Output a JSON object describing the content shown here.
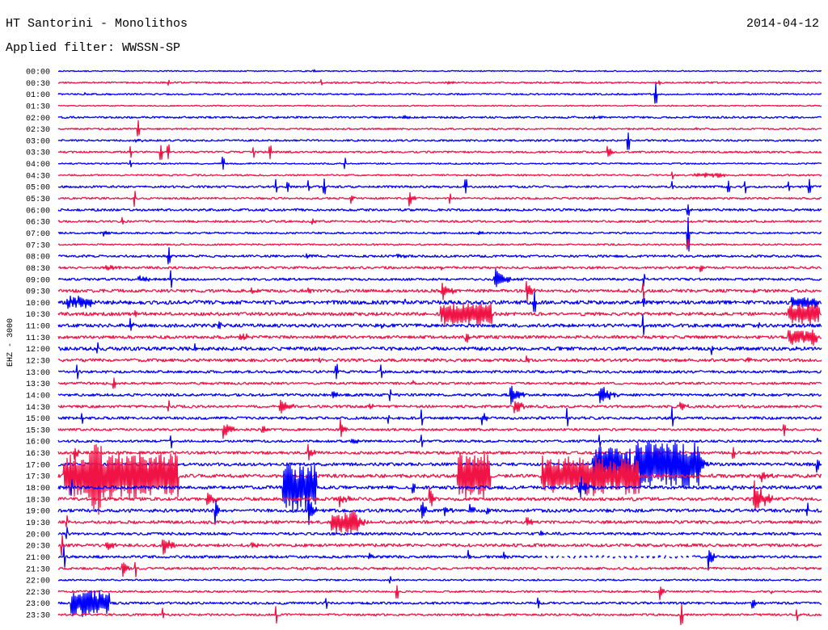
{
  "chart_data": {
    "type": "line",
    "title": "HT Santorini - Monolithos",
    "subtitle": "Applied filter: WWSSN-SP",
    "date": "2014-04-12",
    "xlabel": "",
    "ylabel": "EHZ - 3000",
    "x_range_minutes": [
      0,
      30
    ],
    "colors": [
      "#0000ff",
      "#f01446"
    ],
    "series": [
      {
        "name": "00:00",
        "noise": 0.05,
        "bursts": [
          [
            10.0,
            0.3,
            0.12
          ]
        ]
      },
      {
        "name": "00:30",
        "noise": 0.07,
        "bursts": [
          [
            4.3,
            0.05,
            0.2
          ],
          [
            10.3,
            0.05,
            0.25
          ],
          [
            15.3,
            0.3,
            0.15
          ],
          [
            23.6,
            0.05,
            0.2
          ]
        ]
      },
      {
        "name": "01:00",
        "noise": 0.07,
        "bursts": [
          [
            1.0,
            0.3,
            0.15
          ],
          [
            23.45,
            0.05,
            0.9
          ]
        ]
      },
      {
        "name": "01:30",
        "noise": 0.05,
        "bursts": []
      },
      {
        "name": "02:00",
        "noise": 0.08,
        "bursts": [
          [
            13.5,
            0.5,
            0.15
          ],
          [
            21.0,
            0.5,
            0.15
          ]
        ]
      },
      {
        "name": "02:30",
        "noise": 0.07,
        "bursts": [
          [
            3.11,
            0.05,
            0.7
          ],
          [
            25.0,
            0.5,
            0.12
          ]
        ]
      },
      {
        "name": "03:00",
        "noise": 0.08,
        "bursts": [
          [
            3.0,
            0.5,
            0.15
          ],
          [
            22.37,
            0.05,
            0.8
          ]
        ]
      },
      {
        "name": "03:30",
        "noise": 0.08,
        "bursts": [
          [
            2.8,
            0.05,
            0.5
          ],
          [
            4.0,
            0.05,
            0.7
          ],
          [
            4.29,
            0.05,
            0.6
          ],
          [
            7.63,
            0.05,
            0.5
          ],
          [
            8.29,
            0.05,
            0.6
          ],
          [
            21.55,
            0.25,
            0.8
          ]
        ]
      },
      {
        "name": "04:00",
        "noise": 0.06,
        "bursts": [
          [
            2.8,
            0.05,
            0.3
          ],
          [
            6.45,
            0.05,
            0.6
          ],
          [
            11.22,
            0.05,
            0.5
          ]
        ]
      },
      {
        "name": "04:30",
        "noise": 0.07,
        "bursts": [
          [
            24.1,
            0.05,
            0.3
          ],
          [
            25.0,
            1.2,
            0.15
          ]
        ]
      },
      {
        "name": "05:00",
        "noise": 0.09,
        "bursts": [
          [
            8.52,
            0.05,
            0.7
          ],
          [
            8.99,
            0.05,
            0.5
          ],
          [
            9.8,
            0.05,
            0.5
          ],
          [
            10.42,
            0.05,
            0.6
          ],
          [
            15.98,
            0.05,
            0.6
          ],
          [
            24.09,
            0.1,
            0.9
          ],
          [
            26.31,
            0.05,
            0.5
          ],
          [
            26.95,
            0.05,
            0.5
          ],
          [
            28.69,
            0.05,
            0.4
          ],
          [
            29.49,
            0.05,
            0.6
          ]
        ]
      },
      {
        "name": "05:30",
        "noise": 0.08,
        "bursts": [
          [
            2.96,
            0.05,
            0.7
          ],
          [
            11.47,
            0.2,
            0.6
          ],
          [
            13.76,
            0.3,
            0.7
          ],
          [
            15.35,
            0.05,
            0.5
          ]
        ]
      },
      {
        "name": "06:00",
        "noise": 0.1,
        "bursts": [
          [
            24.72,
            0.05,
            0.5
          ]
        ]
      },
      {
        "name": "06:30",
        "noise": 0.09,
        "bursts": [
          [
            2.5,
            0.05,
            0.3
          ],
          [
            9.95,
            0.3,
            0.3
          ]
        ]
      },
      {
        "name": "07:00",
        "noise": 0.08,
        "bursts": [
          [
            1.75,
            0.3,
            0.55
          ],
          [
            16.5,
            0.3,
            0.2
          ],
          [
            24.72,
            0.05,
            1.6
          ]
        ]
      },
      {
        "name": "07:30",
        "noise": 0.07,
        "bursts": [
          [
            24.7,
            0.05,
            0.5
          ]
        ]
      },
      {
        "name": "08:00",
        "noise": 0.1,
        "bursts": [
          [
            4.32,
            0.05,
            0.8
          ],
          [
            9.72,
            0.3,
            0.3
          ],
          [
            13.28,
            0.4,
            0.3
          ]
        ]
      },
      {
        "name": "08:30",
        "noise": 0.1,
        "bursts": [
          [
            1.84,
            0.8,
            0.3
          ],
          [
            15.0,
            0.2,
            0.25
          ],
          [
            25.2,
            0.2,
            0.6
          ]
        ]
      },
      {
        "name": "09:00",
        "noise": 0.1,
        "bursts": [
          [
            3.1,
            0.8,
            0.3
          ],
          [
            4.39,
            0.05,
            0.8
          ],
          [
            17.1,
            0.7,
            1.0
          ],
          [
            23.0,
            0.05,
            0.6
          ]
        ]
      },
      {
        "name": "09:30",
        "noise": 0.13,
        "bursts": [
          [
            7.56,
            0.3,
            0.4
          ],
          [
            9.79,
            0.4,
            0.35
          ],
          [
            15.03,
            0.6,
            0.9
          ],
          [
            18.37,
            0.4,
            1.1
          ],
          [
            22.97,
            0.05,
            0.8
          ],
          [
            27.0,
            0.5,
            0.3
          ]
        ]
      },
      {
        "name": "10:00",
        "noise": 0.16,
        "bursts": [
          [
            0.3,
            1.0,
            0.45
          ],
          [
            13.6,
            0.1,
            0.5
          ],
          [
            18.68,
            0.05,
            1.0
          ],
          [
            22.97,
            0.1,
            1.1
          ],
          [
            28.8,
            1.0,
            0.4
          ]
        ]
      },
      {
        "name": "10:30",
        "noise": 0.14,
        "bursts": [
          [
            3.0,
            0.1,
            0.5
          ],
          [
            15.03,
            2.0,
            0.9
          ],
          [
            28.69,
            1.2,
            0.8
          ]
        ]
      },
      {
        "name": "11:00",
        "noise": 0.14,
        "bursts": [
          [
            2.8,
            0.2,
            0.8
          ],
          [
            6.29,
            0.1,
            0.8
          ],
          [
            12.5,
            0.5,
            0.3
          ],
          [
            22.97,
            0.05,
            1.0
          ],
          [
            27.5,
            0.1,
            0.6
          ]
        ]
      },
      {
        "name": "11:30",
        "noise": 0.13,
        "bursts": [
          [
            7.09,
            0.6,
            0.5
          ],
          [
            16.0,
            0.3,
            0.6
          ],
          [
            28.69,
            1.1,
            0.6
          ]
        ]
      },
      {
        "name": "12:00",
        "noise": 0.15,
        "bursts": [
          [
            1.5,
            0.05,
            0.6
          ],
          [
            5.34,
            0.1,
            0.8
          ],
          [
            25.67,
            0.1,
            0.7
          ],
          [
            29.01,
            0.1,
            0.5
          ]
        ]
      },
      {
        "name": "12:30",
        "noise": 0.13,
        "bursts": [
          [
            10.26,
            0.1,
            0.7
          ],
          [
            18.37,
            0.2,
            0.5
          ],
          [
            27.0,
            0.4,
            0.3
          ]
        ]
      },
      {
        "name": "13:00",
        "noise": 0.11,
        "bursts": [
          [
            0.7,
            0.05,
            0.6
          ],
          [
            10.9,
            0.05,
            0.6
          ],
          [
            12.65,
            0.05,
            0.5
          ]
        ]
      },
      {
        "name": "13:30",
        "noise": 0.1,
        "bursts": [
          [
            2.16,
            0.05,
            0.5
          ],
          [
            13.92,
            0.2,
            0.3
          ]
        ]
      },
      {
        "name": "14:00",
        "noise": 0.11,
        "bursts": [
          [
            10.74,
            0.3,
            0.5
          ],
          [
            13.0,
            0.05,
            0.6
          ],
          [
            17.73,
            0.6,
            0.9
          ],
          [
            21.23,
            0.8,
            0.9
          ]
        ]
      },
      {
        "name": "14:30",
        "noise": 0.11,
        "bursts": [
          [
            4.3,
            0.05,
            0.5
          ],
          [
            8.67,
            0.6,
            0.9
          ],
          [
            12.2,
            0.2,
            0.6
          ],
          [
            17.89,
            0.5,
            0.9
          ],
          [
            24.4,
            0.4,
            0.5
          ]
        ]
      },
      {
        "name": "15:00",
        "noise": 0.11,
        "bursts": [
          [
            0.89,
            0.05,
            0.6
          ],
          [
            12.96,
            0.1,
            0.6
          ],
          [
            14.24,
            0.05,
            0.7
          ],
          [
            16.62,
            0.3,
            0.9
          ],
          [
            19.96,
            0.05,
            0.8
          ],
          [
            24.09,
            0.05,
            0.9
          ]
        ]
      },
      {
        "name": "15:30",
        "noise": 0.1,
        "bursts": [
          [
            6.45,
            0.5,
            1.0
          ],
          [
            8.0,
            0.2,
            0.5
          ],
          [
            11.06,
            0.3,
            0.9
          ],
          [
            28.5,
            0.05,
            0.5
          ]
        ]
      },
      {
        "name": "16:00",
        "noise": 0.1,
        "bursts": [
          [
            4.39,
            0.05,
            0.5
          ],
          [
            11.5,
            0.3,
            0.5
          ],
          [
            14.24,
            0.05,
            0.6
          ],
          [
            21.23,
            0.05,
            0.6
          ],
          [
            29.81,
            0.1,
            0.7
          ]
        ]
      },
      {
        "name": "16:30",
        "noise": 0.12,
        "bursts": [
          [
            0.6,
            0.3,
            0.7
          ],
          [
            9.79,
            0.3,
            0.8
          ],
          [
            23.45,
            0.3,
            0.7
          ],
          [
            26.5,
            0.05,
            0.5
          ]
        ]
      },
      {
        "name": "17:00",
        "noise": 0.13,
        "bursts": [
          [
            21.0,
            1.5,
            1.4
          ],
          [
            22.6,
            2.6,
            2.0
          ],
          [
            25.2,
            0.5,
            0.8
          ],
          [
            29.8,
            0.15,
            1.2
          ]
        ]
      },
      {
        "name": "17:30",
        "noise": 0.15,
        "bursts": [
          [
            0.2,
            1.5,
            1.8
          ],
          [
            1.3,
            3.4,
            2.0
          ],
          [
            15.67,
            1.3,
            1.9
          ],
          [
            19.0,
            3.8,
            1.6
          ],
          [
            27.5,
            0.6,
            0.6
          ]
        ]
      },
      {
        "name": "18:00",
        "noise": 0.14,
        "bursts": [
          [
            0.5,
            0.05,
            0.8
          ],
          [
            8.83,
            1.3,
            2.0
          ],
          [
            13.9,
            0.2,
            0.6
          ],
          [
            20.43,
            0.6,
            1.2
          ],
          [
            26.5,
            0.1,
            0.5
          ]
        ]
      },
      {
        "name": "18:30",
        "noise": 0.14,
        "bursts": [
          [
            5.82,
            0.4,
            1.0
          ],
          [
            11.0,
            0.5,
            0.8
          ],
          [
            14.55,
            0.3,
            1.2
          ],
          [
            27.3,
            0.8,
            1.7
          ]
        ]
      },
      {
        "name": "19:00",
        "noise": 0.14,
        "bursts": [
          [
            6.13,
            0.3,
            1.2
          ],
          [
            9.79,
            0.4,
            1.5
          ],
          [
            14.24,
            0.3,
            1.0
          ],
          [
            15.13,
            0.4,
            0.5
          ],
          [
            16.14,
            0.3,
            0.9
          ],
          [
            16.84,
            0.15,
            1.0
          ],
          [
            29.4,
            0.05,
            0.6
          ]
        ]
      },
      {
        "name": "19:30",
        "noise": 0.13,
        "bursts": [
          [
            0.3,
            0.05,
            0.6
          ],
          [
            10.74,
            1.0,
            0.9
          ],
          [
            11.5,
            0.8,
            0.6
          ],
          [
            18.37,
            0.3,
            0.5
          ]
        ]
      },
      {
        "name": "20:00",
        "noise": 0.11,
        "bursts": [
          [
            0.3,
            0.05,
            0.5
          ],
          [
            18.94,
            0.2,
            0.5
          ]
        ]
      },
      {
        "name": "20:30",
        "noise": 0.13,
        "bursts": [
          [
            0.1,
            0.05,
            0.9
          ],
          [
            1.84,
            0.6,
            0.35
          ],
          [
            4.07,
            0.5,
            1.0
          ],
          [
            7.56,
            0.3,
            0.5
          ]
        ]
      },
      {
        "name": "21:00",
        "noise": 0.11,
        "bursts": [
          [
            0.2,
            0.05,
            0.9
          ],
          [
            12.17,
            0.3,
            0.5
          ],
          [
            16.08,
            0.15,
            0.9
          ],
          [
            17.5,
            0.15,
            0.7
          ],
          [
            25.52,
            0.3,
            1.3
          ]
        ],
        "gaps": [
          [
            19.0,
            6.0
          ]
        ]
      },
      {
        "name": "21:30",
        "noise": 0.1,
        "bursts": [
          [
            2.5,
            0.3,
            0.9
          ],
          [
            3.0,
            0.05,
            0.7
          ]
        ]
      },
      {
        "name": "22:00",
        "noise": 0.07,
        "bursts": [
          [
            13.0,
            0.05,
            0.3
          ]
        ]
      },
      {
        "name": "22:30",
        "noise": 0.08,
        "bursts": [
          [
            13.28,
            0.05,
            0.7
          ],
          [
            23.61,
            0.2,
            1.0
          ],
          [
            28.0,
            0.1,
            0.5
          ]
        ]
      },
      {
        "name": "23:00",
        "noise": 0.1,
        "bursts": [
          [
            0.5,
            1.5,
            1.1
          ],
          [
            10.5,
            0.05,
            0.6
          ],
          [
            18.84,
            0.1,
            0.9
          ],
          [
            27.26,
            0.15,
            1.0
          ]
        ]
      },
      {
        "name": "23:30",
        "noise": 0.09,
        "bursts": [
          [
            4.07,
            0.1,
            1.1
          ],
          [
            8.52,
            0.05,
            0.7
          ],
          [
            24.47,
            0.05,
            1.0
          ],
          [
            29.0,
            0.05,
            0.5
          ]
        ]
      }
    ]
  }
}
